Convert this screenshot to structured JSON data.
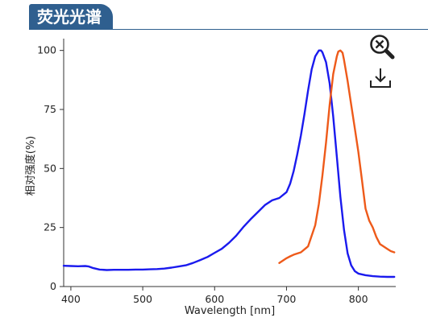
{
  "header": {
    "title": "荧光光谱"
  },
  "toolbar": {
    "zoom_icon": "zoom-reset-icon",
    "download_icon": "download-icon"
  },
  "chart_data": {
    "type": "line",
    "xlabel": "Wavelength [nm]",
    "ylabel": "相对强度(%)",
    "xlim": [
      390,
      852
    ],
    "ylim": [
      0,
      105
    ],
    "xticks": [
      400,
      500,
      600,
      700,
      800
    ],
    "yticks": [
      0,
      25,
      50,
      75,
      100
    ],
    "grid": false,
    "legend": "none",
    "series": [
      {
        "color": "#1a1aee",
        "x": [
          390,
          400,
          410,
          420,
          425,
          430,
          440,
          450,
          460,
          470,
          480,
          490,
          500,
          510,
          520,
          530,
          540,
          550,
          560,
          570,
          580,
          590,
          600,
          610,
          620,
          630,
          640,
          650,
          660,
          670,
          680,
          690,
          700,
          705,
          710,
          715,
          720,
          725,
          730,
          735,
          740,
          745,
          748,
          750,
          755,
          760,
          765,
          770,
          775,
          780,
          785,
          790,
          795,
          800,
          810,
          820,
          830,
          840,
          850
        ],
        "y": [
          8.8,
          8.7,
          8.6,
          8.7,
          8.5,
          7.9,
          7.2,
          7.0,
          7.1,
          7.1,
          7.1,
          7.2,
          7.2,
          7.3,
          7.4,
          7.6,
          8.0,
          8.5,
          9.0,
          10.0,
          11.2,
          12.5,
          14.3,
          16.0,
          18.5,
          21.5,
          25.2,
          28.5,
          31.5,
          34.5,
          36.5,
          37.5,
          40.0,
          43.5,
          49.0,
          56.0,
          64.0,
          73.0,
          83.0,
          92.0,
          97.5,
          100.0,
          100.0,
          99.2,
          95.0,
          86.0,
          72.0,
          55.0,
          38.0,
          24.0,
          14.0,
          9.0,
          6.5,
          5.5,
          4.8,
          4.4,
          4.2,
          4.1,
          4.1
        ]
      },
      {
        "color": "#ee5a1a",
        "x": [
          690,
          695,
          700,
          705,
          710,
          720,
          730,
          740,
          745,
          750,
          755,
          760,
          765,
          770,
          772,
          775,
          778,
          780,
          785,
          790,
          795,
          800,
          805,
          810,
          815,
          820,
          825,
          830,
          835,
          840,
          845,
          850
        ],
        "y": [
          10.0,
          11.0,
          12.0,
          12.8,
          13.5,
          14.5,
          17.0,
          26.0,
          35.0,
          47.0,
          61.0,
          77.0,
          90.0,
          97.5,
          99.5,
          100.0,
          99.0,
          96.0,
          87.0,
          77.0,
          67.0,
          57.0,
          45.0,
          33.0,
          28.0,
          25.0,
          21.0,
          18.0,
          17.0,
          16.0,
          15.0,
          14.5
        ]
      }
    ]
  }
}
